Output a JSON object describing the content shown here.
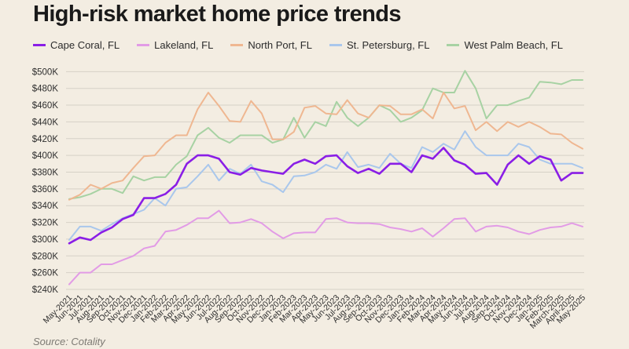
{
  "header": {
    "title": "High-risk market home price trends"
  },
  "footer": {
    "source": "Source: Cotality"
  },
  "colors": {
    "background": "#f3ede2",
    "grid": "#d6d1c7",
    "Cape Coral, FL": "#8a1ee6",
    "Lakeland, FL": "#e29be6",
    "North Port, FL": "#efb791",
    "St. Petersburg, FL": "#a9c7ec",
    "West Palm Beach, FL": "#a7d2a3"
  },
  "chart_data": {
    "type": "line",
    "title": "High-risk market home price trends",
    "xlabel": "",
    "ylabel": "",
    "ylim": [
      240000,
      505000
    ],
    "grid": "horizontal",
    "legend_position": "top",
    "yticks": [
      {
        "value": 240000,
        "label": "$240K"
      },
      {
        "value": 260000,
        "label": "$260K"
      },
      {
        "value": 280000,
        "label": "$280K"
      },
      {
        "value": 300000,
        "label": "$300K"
      },
      {
        "value": 320000,
        "label": "$320K"
      },
      {
        "value": 340000,
        "label": "$340K"
      },
      {
        "value": 360000,
        "label": "$360K"
      },
      {
        "value": 380000,
        "label": "$380K"
      },
      {
        "value": 400000,
        "label": "$400K"
      },
      {
        "value": 420000,
        "label": "$420K"
      },
      {
        "value": 440000,
        "label": "$440K"
      },
      {
        "value": 460000,
        "label": "$460K"
      },
      {
        "value": 480000,
        "label": "$480K"
      },
      {
        "value": 500000,
        "label": "$500K"
      }
    ],
    "x": [
      "May-2021",
      "Jun-2021",
      "Jul-2021",
      "Aug-2021",
      "Sep-2021",
      "Oct-2021",
      "Nov-2021",
      "Dec-2021",
      "Jan-2022",
      "Feb-2022",
      "Mar-2022",
      "Apr-2022",
      "May-2022",
      "Jun-2022",
      "Jul-2022",
      "Aug-2022",
      "Sep-2022",
      "Oct-2022",
      "Nov-2022",
      "Dec-2022",
      "Jan-2023",
      "Feb-2023",
      "Mar-2023",
      "Apr-2023",
      "May-2023",
      "Jun-2023",
      "Jul-2023",
      "Aug-2023",
      "Sep-2023",
      "Oct-2023",
      "Nov-2023",
      "Dec-2023",
      "Jan-2024",
      "Feb-2024",
      "Mar-2024",
      "Apr-2024",
      "May-2024",
      "Jun-2024",
      "Jul-2024",
      "Aug-2024",
      "Sep-2024",
      "Oct-2024",
      "Nov-2024",
      "Dec-2024",
      "Jan-2025",
      "Feb-2025",
      "March-2025",
      "April-2025",
      "May-2025"
    ],
    "series": [
      {
        "name": "Cape Coral, FL",
        "color": "#8a1ee6",
        "values": [
          295000,
          302000,
          299000,
          308000,
          314000,
          324000,
          329000,
          349000,
          349000,
          354000,
          365000,
          390000,
          400000,
          400000,
          396000,
          380000,
          377000,
          385000,
          382000,
          380000,
          378000,
          390000,
          395000,
          390000,
          399000,
          400000,
          387000,
          379000,
          384000,
          378000,
          390000,
          390000,
          380000,
          400000,
          396000,
          409000,
          394000,
          389000,
          378000,
          379000,
          365000,
          389000,
          400000,
          390000,
          399000,
          395000,
          370000,
          379000,
          379000
        ]
      },
      {
        "name": "Lakeland, FL",
        "color": "#e29be6",
        "values": [
          246000,
          260000,
          260000,
          270000,
          270000,
          275000,
          280000,
          289000,
          292000,
          309000,
          311000,
          317000,
          325000,
          325000,
          334000,
          319000,
          320000,
          324000,
          319000,
          309000,
          301000,
          307000,
          308000,
          308000,
          324000,
          325000,
          320000,
          319000,
          319000,
          318000,
          314000,
          312000,
          309000,
          313000,
          303000,
          313000,
          324000,
          325000,
          309000,
          315000,
          316000,
          314000,
          309000,
          306000,
          311000,
          314000,
          315000,
          319000,
          315000
        ]
      },
      {
        "name": "North Port, FL",
        "color": "#efb791",
        "values": [
          347000,
          353000,
          365000,
          360000,
          367000,
          370000,
          385000,
          399000,
          400000,
          415000,
          424000,
          424000,
          455000,
          475000,
          459000,
          441000,
          440000,
          465000,
          450000,
          419000,
          419000,
          428000,
          457000,
          459000,
          450000,
          449000,
          466000,
          450000,
          445000,
          460000,
          459000,
          449000,
          449000,
          455000,
          444000,
          475000,
          456000,
          459000,
          430000,
          440000,
          429000,
          440000,
          434000,
          440000,
          434000,
          426000,
          425000,
          415000,
          408000
        ]
      },
      {
        "name": "St. Petersburg, FL",
        "color": "#a9c7ec",
        "values": [
          299000,
          315000,
          315000,
          310000,
          318000,
          325000,
          330000,
          335000,
          349000,
          340000,
          360000,
          362000,
          375000,
          389000,
          370000,
          384000,
          378000,
          389000,
          369000,
          365000,
          356000,
          375000,
          376000,
          380000,
          389000,
          384000,
          404000,
          386000,
          389000,
          385000,
          402000,
          390000,
          385000,
          410000,
          404000,
          414000,
          407000,
          429000,
          410000,
          400000,
          400000,
          400000,
          414000,
          410000,
          395000,
          390000,
          390000,
          390000,
          385000
        ]
      },
      {
        "name": "West Palm Beach, FL",
        "color": "#a7d2a3",
        "values": [
          348000,
          350000,
          354000,
          360000,
          360000,
          355000,
          375000,
          370000,
          374000,
          374000,
          389000,
          399000,
          424000,
          433000,
          421000,
          415000,
          424000,
          424000,
          424000,
          415000,
          419000,
          445000,
          421000,
          440000,
          435000,
          464000,
          445000,
          435000,
          445000,
          460000,
          454000,
          440000,
          445000,
          454000,
          480000,
          475000,
          475000,
          501000,
          480000,
          444000,
          460000,
          460000,
          465000,
          469000,
          488000,
          487000,
          485000,
          490000,
          490000
        ]
      }
    ]
  }
}
